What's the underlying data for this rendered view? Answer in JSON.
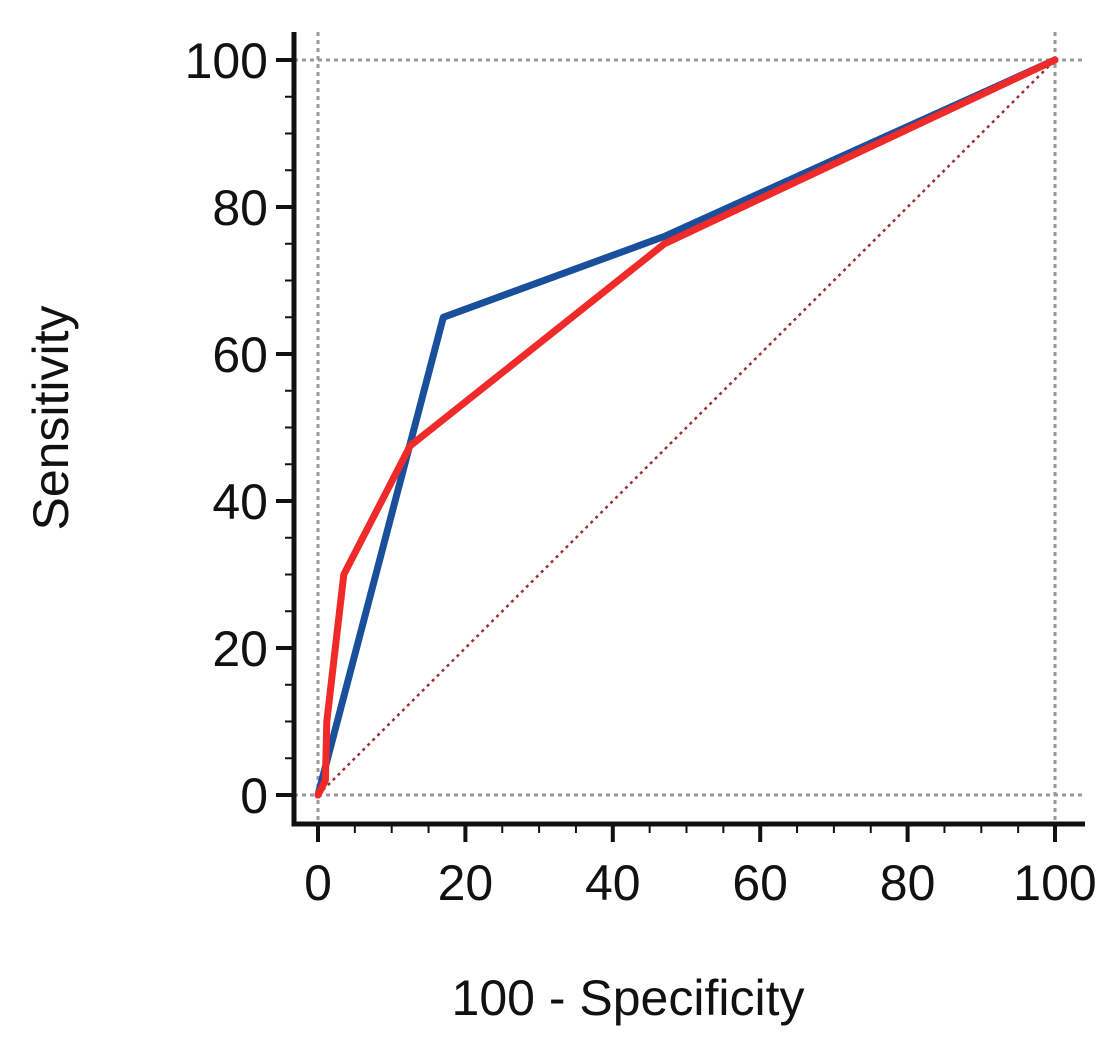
{
  "chart_data": {
    "type": "line",
    "title": "",
    "xlabel": "100 - Specificity",
    "ylabel": "Sensitivity",
    "xlim": [
      0,
      100
    ],
    "ylim": [
      0,
      100
    ],
    "x_ticks": [
      0,
      20,
      40,
      60,
      80,
      100
    ],
    "y_ticks": [
      0,
      20,
      40,
      60,
      80,
      100
    ],
    "x_tick_labels": [
      "0",
      "20",
      "40",
      "60",
      "80",
      "100"
    ],
    "y_tick_labels": [
      "0",
      "20",
      "40",
      "60",
      "80",
      "100"
    ],
    "minor_tick_step": 5,
    "reference_line": {
      "name": "chance-line",
      "x": [
        0,
        100
      ],
      "y": [
        0,
        100
      ],
      "color": "#9b2f2f",
      "style": "dotted"
    },
    "gridlines": {
      "x": [
        0,
        100
      ],
      "y": [
        0,
        100
      ],
      "color": "#9a9a9a",
      "style": "dotted"
    },
    "series": [
      {
        "name": "blue-roc",
        "color": "#1a4f9c",
        "x": [
          0,
          17,
          47,
          100
        ],
        "y": [
          0,
          65,
          76,
          100
        ]
      },
      {
        "name": "red-roc",
        "color": "#f02a28",
        "x": [
          0,
          1,
          1.2,
          3.5,
          12.5,
          47,
          100
        ],
        "y": [
          0,
          2,
          10,
          30,
          47.5,
          75,
          100
        ]
      }
    ]
  }
}
